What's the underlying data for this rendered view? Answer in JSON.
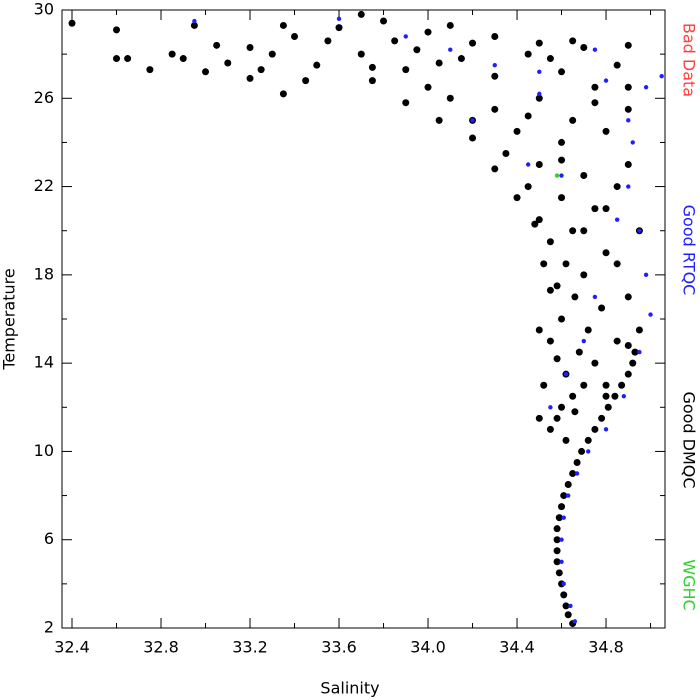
{
  "chart_data": {
    "type": "scatter",
    "x_label": "Salinity",
    "y_label": "Temperature",
    "xlim": [
      32.355,
      35.065
    ],
    "ylim": [
      2,
      30
    ],
    "xticks": [
      32.4,
      32.8,
      33.2,
      33.6,
      {
        "value": 34,
        "label": "34.0"
      },
      34.4,
      34.8
    ],
    "x_minor_ticks": [
      32.6,
      33.0,
      33.4,
      33.8,
      34.2,
      34.6,
      35.0
    ],
    "yticks": [
      2,
      6,
      10,
      14,
      18,
      22,
      26,
      30
    ],
    "y_minor_ticks": [
      4,
      8,
      12,
      16,
      20,
      24,
      28
    ],
    "series": [
      {
        "name": "Bad Data",
        "color": "#ff4040",
        "x": [],
        "values": []
      },
      {
        "name": "Good RTQC",
        "color": "#2020ff",
        "x": [
          34.66,
          34.64,
          34.61,
          34.6,
          34.6,
          34.61,
          34.63,
          34.67,
          34.72,
          34.8,
          34.88,
          34.95,
          35.0,
          34.98,
          34.95,
          34.9,
          34.92,
          34.98,
          35.05,
          34.8,
          34.5,
          34.3,
          34.1,
          33.9,
          32.95,
          33.6,
          34.2,
          34.45,
          34.6,
          34.75,
          34.7,
          34.62,
          34.55,
          34.85,
          34.5,
          34.75,
          34.9
        ],
        "values": [
          2.3,
          3,
          4,
          5,
          6,
          7,
          8,
          9,
          10,
          11,
          12.5,
          14.5,
          16.2,
          18,
          20,
          22,
          24,
          26.5,
          27,
          26.8,
          26.2,
          27.5,
          28.2,
          28.8,
          29.5,
          29.6,
          25,
          23,
          22.5,
          17,
          15,
          13.5,
          12,
          20.5,
          27.2,
          28.2,
          25
        ]
      },
      {
        "name": "Good DMQC",
        "color": "#000000",
        "x": [
          34.65,
          34.63,
          34.62,
          34.61,
          34.6,
          34.59,
          34.58,
          34.58,
          34.58,
          34.58,
          34.59,
          34.6,
          34.61,
          34.63,
          34.65,
          34.67,
          34.69,
          34.72,
          34.75,
          34.78,
          34.81,
          34.84,
          34.87,
          34.9,
          34.92,
          34.93,
          34.55,
          34.58,
          34.6,
          34.65,
          34.7,
          34.62,
          34.75,
          34.8,
          34.68,
          34.55,
          34.72,
          34.85,
          34.6,
          34.78,
          34.66,
          34.58,
          34.7,
          34.62,
          34.8,
          34.55,
          34.65,
          34.5,
          34.75,
          34.6,
          34.45,
          34.85,
          34.7,
          34.5,
          34.35,
          34.9,
          34.6,
          34.4,
          34.8,
          34.2,
          34.65,
          34.3,
          34.9,
          34.1,
          34.5,
          34.75,
          34.0,
          34.3,
          34.6,
          34.85,
          33.9,
          34.15,
          34.45,
          34.7,
          34.9,
          33.7,
          33.5,
          33.3,
          33.1,
          32.9,
          32.75,
          32.6,
          33.0,
          33.2,
          33.4,
          33.6,
          33.8,
          34.0,
          34.2,
          33.95,
          33.75,
          33.45,
          33.2,
          32.85,
          33.05,
          33.35,
          33.7,
          34.1,
          34.3,
          34.5,
          34.65,
          32.4,
          32.6,
          32.65,
          33.75,
          33.9,
          34.05,
          34.2,
          34.3,
          34.4,
          34.48,
          34.52,
          34.55,
          34.5,
          34.52,
          34.5,
          34.62,
          34.8,
          34.9,
          34.95,
          34.9,
          34.85,
          34.95,
          34.8,
          34.9,
          34.75,
          34.55,
          34.05,
          33.85,
          33.55,
          33.25,
          32.95,
          33.35,
          34.45,
          34.6,
          34.7,
          34.58,
          34.66
        ],
        "values": [
          2.2,
          2.6,
          3,
          3.5,
          4,
          4.5,
          5,
          5.5,
          6,
          6.5,
          7,
          7.5,
          8,
          8.5,
          9,
          9.5,
          10,
          10.5,
          11,
          11.5,
          12,
          12.5,
          13,
          13.5,
          14,
          14.5,
          11,
          11.5,
          12,
          12.5,
          13,
          13.5,
          14,
          13,
          14.5,
          15,
          15.5,
          15,
          16,
          16.5,
          17,
          17.5,
          18,
          18.5,
          19,
          19.5,
          20,
          20.5,
          21,
          21.5,
          22,
          22,
          22.5,
          23,
          23.5,
          23,
          24,
          24.5,
          24.5,
          25,
          25,
          25.5,
          25.5,
          26,
          26,
          26.5,
          26.5,
          27,
          27.2,
          27.5,
          27.3,
          27.8,
          28,
          28.3,
          28.4,
          28,
          27.5,
          28,
          27.6,
          27.8,
          27.3,
          27.8,
          27.2,
          28.3,
          28.8,
          29.2,
          29.5,
          29,
          28.5,
          28.2,
          27.4,
          26.8,
          26.9,
          28,
          28.4,
          29.3,
          29.8,
          29.3,
          28.8,
          28.5,
          28.6,
          29.4,
          29.1,
          27.8,
          26.8,
          25.8,
          25,
          24.2,
          22.8,
          21.5,
          20.3,
          18.5,
          17.3,
          15.5,
          13,
          11.5,
          10.5,
          12.5,
          14.8,
          15.5,
          17,
          18.5,
          20,
          21,
          26.5,
          25.8,
          27.8,
          27.6,
          28.6,
          28.6,
          27.3,
          29.3,
          26.2,
          25.2,
          23.2,
          20,
          14.2,
          11.8
        ]
      },
      {
        "name": "WGHC",
        "color": "#30d030",
        "x": [
          34.58
        ],
        "values": [
          22.5
        ]
      }
    ]
  }
}
